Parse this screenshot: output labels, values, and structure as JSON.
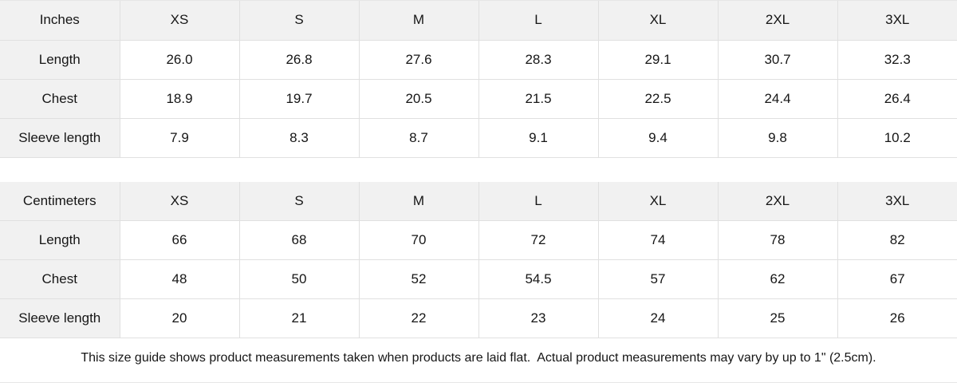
{
  "colors": {
    "header_fill": "#f1f1f1",
    "grid_line": "#e0e0e0",
    "cell_fill": "#ffffff",
    "text": "#161616"
  },
  "tables": [
    {
      "unit_label": "Inches",
      "sizes": [
        "XS",
        "S",
        "M",
        "L",
        "XL",
        "2XL",
        "3XL"
      ],
      "rows": [
        {
          "label": "Length",
          "values": [
            "26.0",
            "26.8",
            "27.6",
            "28.3",
            "29.1",
            "30.7",
            "32.3"
          ]
        },
        {
          "label": "Chest",
          "values": [
            "18.9",
            "19.7",
            "20.5",
            "21.5",
            "22.5",
            "24.4",
            "26.4"
          ]
        },
        {
          "label": "Sleeve length",
          "values": [
            "7.9",
            "8.3",
            "8.7",
            "9.1",
            "9.4",
            "9.8",
            "10.2"
          ]
        }
      ]
    },
    {
      "unit_label": "Centimeters",
      "sizes": [
        "XS",
        "S",
        "M",
        "L",
        "XL",
        "2XL",
        "3XL"
      ],
      "rows": [
        {
          "label": "Length",
          "values": [
            "66",
            "68",
            "70",
            "72",
            "74",
            "78",
            "82"
          ]
        },
        {
          "label": "Chest",
          "values": [
            "48",
            "50",
            "52",
            "54.5",
            "57",
            "62",
            "67"
          ]
        },
        {
          "label": "Sleeve length",
          "values": [
            "20",
            "21",
            "22",
            "23",
            "24",
            "25",
            "26"
          ]
        }
      ]
    }
  ],
  "footer_note": "This size guide shows product measurements taken when products are laid flat.  Actual product measurements may vary by up to 1\" (2.5cm)."
}
